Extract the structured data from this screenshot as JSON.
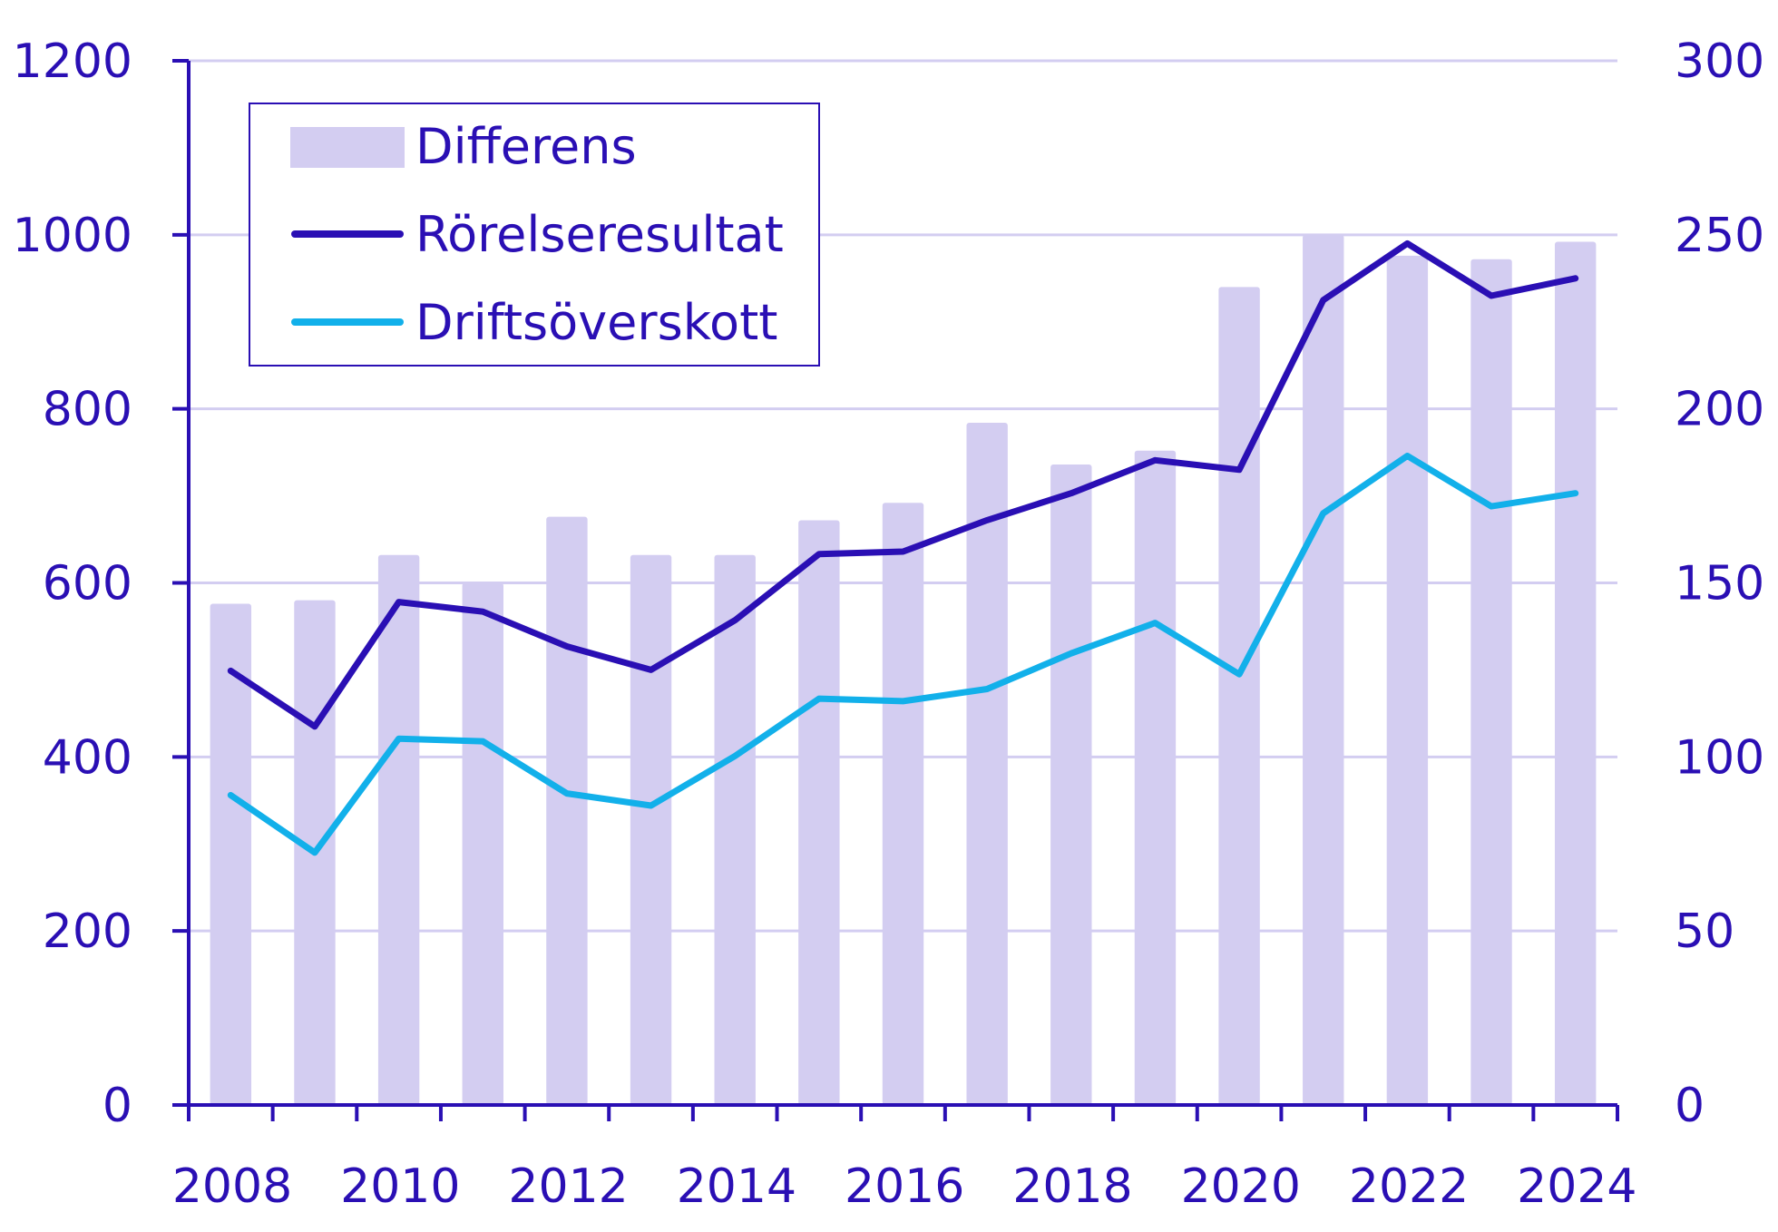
{
  "chart_data": {
    "type": "bar+line",
    "x": [
      "2008",
      "2009",
      "2010",
      "2011",
      "2012",
      "2013",
      "2014",
      "2015",
      "2016",
      "2017",
      "2018",
      "2019",
      "2020",
      "2021",
      "2022",
      "2023",
      "2024"
    ],
    "x_tick_labels": [
      "2008",
      "2010",
      "2012",
      "2014",
      "2016",
      "2018",
      "2020",
      "2022",
      "2024"
    ],
    "y_left_ticks": [
      "0",
      "200",
      "400",
      "600",
      "800",
      "1000",
      "1200"
    ],
    "y_right_ticks": [
      "0",
      "50",
      "100",
      "150",
      "200",
      "250",
      "300"
    ],
    "ylim_left": [
      0,
      1200
    ],
    "ylim_right": [
      0,
      300
    ],
    "grid": true,
    "legend_position": "top-left",
    "series": [
      {
        "name": "Differens",
        "kind": "bar",
        "axis": "right",
        "color": "#d3cdf1",
        "values": [
          144,
          145,
          158,
          150,
          169,
          158,
          158,
          168,
          173,
          196,
          184,
          188,
          235,
          250,
          244,
          243,
          248
        ]
      },
      {
        "name": "Rörelseresultat",
        "kind": "line",
        "axis": "left",
        "color": "#2a0fb4",
        "values": [
          499,
          435,
          578,
          567,
          527,
          500,
          557,
          633,
          636,
          672,
          703,
          741,
          730,
          925,
          990,
          930,
          950
        ]
      },
      {
        "name": "Driftsöverskott",
        "kind": "line",
        "axis": "left",
        "color": "#12b0ea",
        "values": [
          356,
          290,
          421,
          418,
          358,
          344,
          401,
          467,
          464,
          478,
          519,
          554,
          495,
          680,
          746,
          688,
          703
        ]
      }
    ]
  }
}
